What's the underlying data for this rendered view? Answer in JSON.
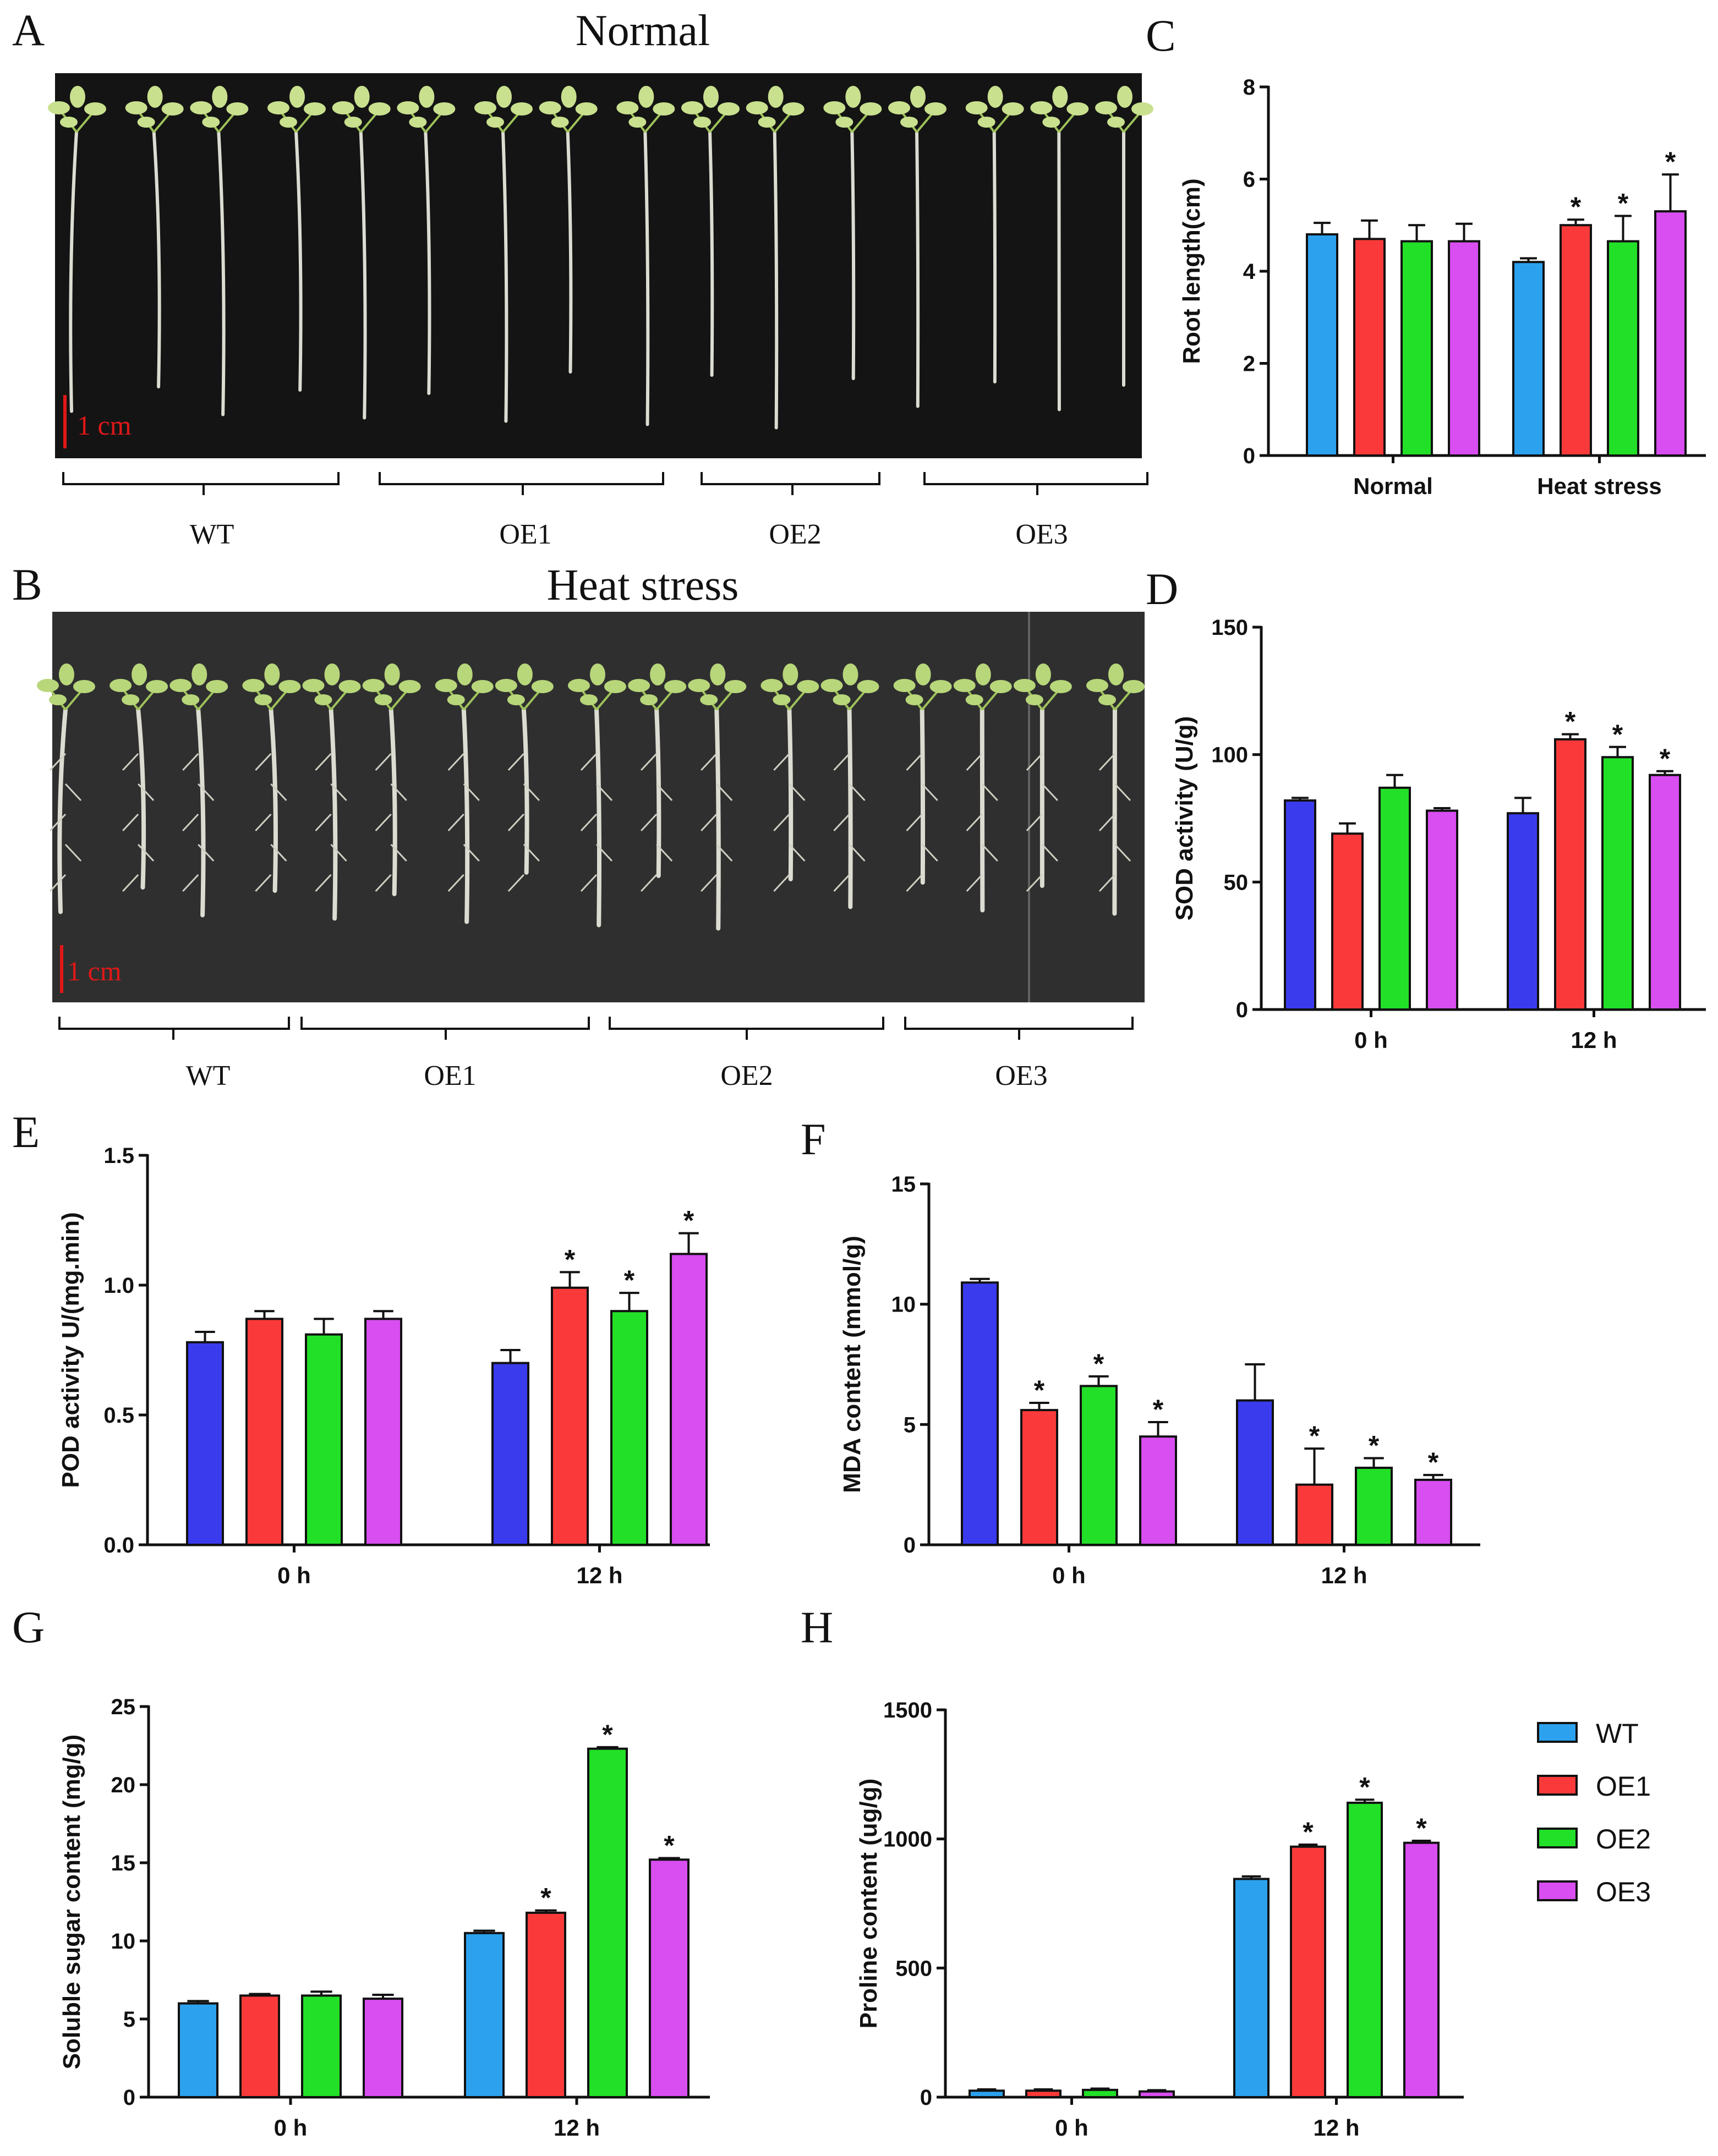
{
  "photos": [
    {
      "letter": "A",
      "title": "Normal",
      "scale_label": "1 cm",
      "groups": [
        "WT",
        "OE1",
        "OE2",
        "OE3"
      ],
      "seedling_count": 16
    },
    {
      "letter": "B",
      "title": "Heat stress",
      "scale_label": "1 cm",
      "groups": [
        "WT",
        "OE1",
        "OE2",
        "OE3"
      ],
      "seedling_count": 17
    }
  ],
  "legend": {
    "items": [
      {
        "label": "WT",
        "color": "#2ca2ee"
      },
      {
        "label": "OE1",
        "color": "#fa3a3a"
      },
      {
        "label": "OE2",
        "color": "#22e028"
      },
      {
        "label": "OE3",
        "color": "#d84ef0"
      }
    ]
  },
  "chart_data": [
    {
      "panel": "C",
      "type": "bar",
      "ylabel": "Root length(cm)",
      "ylim": [
        0,
        8
      ],
      "yticks": [
        "0",
        "2",
        "4",
        "6",
        "8"
      ],
      "categories": [
        "Normal",
        "Heat stress"
      ],
      "series": [
        {
          "name": "WT",
          "color": "#2ca2ee",
          "values": [
            4.8,
            4.2
          ],
          "errors": [
            0.25,
            0.08
          ],
          "sig": [
            "",
            ""
          ]
        },
        {
          "name": "OE1",
          "color": "#fa3a3a",
          "values": [
            4.7,
            5.0
          ],
          "errors": [
            0.4,
            0.12
          ],
          "sig": [
            "",
            "*"
          ]
        },
        {
          "name": "OE2",
          "color": "#22e028",
          "values": [
            4.65,
            4.65
          ],
          "errors": [
            0.35,
            0.55
          ],
          "sig": [
            "",
            "*"
          ]
        },
        {
          "name": "OE3",
          "color": "#d84ef0",
          "values": [
            4.65,
            5.3
          ],
          "errors": [
            0.38,
            0.8
          ],
          "sig": [
            "",
            "*"
          ]
        }
      ]
    },
    {
      "panel": "D",
      "type": "bar",
      "ylabel": "SOD activity (U/g)",
      "ylim": [
        0,
        150
      ],
      "yticks": [
        "0",
        "50",
        "100",
        "150"
      ],
      "categories": [
        "0 h",
        "12 h"
      ],
      "series": [
        {
          "name": "WT",
          "color": "#3b3bee",
          "values": [
            82,
            77
          ],
          "errors": [
            1,
            6
          ],
          "sig": [
            "",
            ""
          ]
        },
        {
          "name": "OE1",
          "color": "#fa3a3a",
          "values": [
            69,
            106
          ],
          "errors": [
            4,
            2
          ],
          "sig": [
            "",
            "*"
          ]
        },
        {
          "name": "OE2",
          "color": "#22e028",
          "values": [
            87,
            99
          ],
          "errors": [
            5,
            4
          ],
          "sig": [
            "",
            "*"
          ]
        },
        {
          "name": "OE3",
          "color": "#d84ef0",
          "values": [
            78,
            92
          ],
          "errors": [
            1,
            1.5
          ],
          "sig": [
            "",
            "*"
          ]
        }
      ]
    },
    {
      "panel": "E",
      "type": "bar",
      "ylabel": "POD activity U/(mg.min)",
      "ylim": [
        0,
        1.5
      ],
      "yticks": [
        "0.0",
        "0.5",
        "1.0",
        "1.5"
      ],
      "categories": [
        "0 h",
        "12 h"
      ],
      "series": [
        {
          "name": "WT",
          "color": "#3b3bee",
          "values": [
            0.78,
            0.7
          ],
          "errors": [
            0.04,
            0.05
          ],
          "sig": [
            "",
            ""
          ]
        },
        {
          "name": "OE1",
          "color": "#fa3a3a",
          "values": [
            0.87,
            0.99
          ],
          "errors": [
            0.03,
            0.06
          ],
          "sig": [
            "",
            "*"
          ]
        },
        {
          "name": "OE2",
          "color": "#22e028",
          "values": [
            0.81,
            0.9
          ],
          "errors": [
            0.06,
            0.07
          ],
          "sig": [
            "",
            "*"
          ]
        },
        {
          "name": "OE3",
          "color": "#d84ef0",
          "values": [
            0.87,
            1.12
          ],
          "errors": [
            0.03,
            0.08
          ],
          "sig": [
            "",
            "*"
          ]
        }
      ]
    },
    {
      "panel": "F",
      "type": "bar",
      "ylabel": "MDA content (mmol/g)",
      "ylim": [
        0,
        15
      ],
      "yticks": [
        "0",
        "5",
        "10",
        "15"
      ],
      "categories": [
        "0 h",
        "12 h"
      ],
      "series": [
        {
          "name": "WT",
          "color": "#3b3bee",
          "values": [
            10.9,
            6.0
          ],
          "errors": [
            0.15,
            1.5
          ],
          "sig": [
            "",
            ""
          ]
        },
        {
          "name": "OE1",
          "color": "#fa3a3a",
          "values": [
            5.6,
            2.5
          ],
          "errors": [
            0.3,
            1.5
          ],
          "sig": [
            "*",
            "*"
          ]
        },
        {
          "name": "OE2",
          "color": "#22e028",
          "values": [
            6.6,
            3.2
          ],
          "errors": [
            0.4,
            0.4
          ],
          "sig": [
            "*",
            "*"
          ]
        },
        {
          "name": "OE3",
          "color": "#d84ef0",
          "values": [
            4.5,
            2.7
          ],
          "errors": [
            0.6,
            0.2
          ],
          "sig": [
            "*",
            "*"
          ]
        }
      ]
    },
    {
      "panel": "G",
      "type": "bar",
      "ylabel": "Soluble sugar content (mg/g)",
      "ylim": [
        0,
        25
      ],
      "yticks": [
        "0",
        "5",
        "10",
        "15",
        "20",
        "25"
      ],
      "categories": [
        "0 h",
        "12 h"
      ],
      "series": [
        {
          "name": "WT",
          "color": "#2ca2ee",
          "values": [
            6.0,
            10.5
          ],
          "errors": [
            0.15,
            0.15
          ],
          "sig": [
            "",
            ""
          ]
        },
        {
          "name": "OE1",
          "color": "#fa3a3a",
          "values": [
            6.5,
            11.8
          ],
          "errors": [
            0.1,
            0.15
          ],
          "sig": [
            "",
            "*"
          ]
        },
        {
          "name": "OE2",
          "color": "#22e028",
          "values": [
            6.5,
            22.3
          ],
          "errors": [
            0.25,
            0.1
          ],
          "sig": [
            "",
            "*"
          ]
        },
        {
          "name": "OE3",
          "color": "#d84ef0",
          "values": [
            6.3,
            15.2
          ],
          "errors": [
            0.25,
            0.1
          ],
          "sig": [
            "",
            "*"
          ]
        }
      ]
    },
    {
      "panel": "H",
      "type": "bar",
      "ylabel": "Proline content (ug/g)",
      "ylim": [
        0,
        1500
      ],
      "yticks": [
        "0",
        "500",
        "1000",
        "1500"
      ],
      "categories": [
        "0 h",
        "12 h"
      ],
      "series": [
        {
          "name": "WT",
          "color": "#2ca2ee",
          "values": [
            25,
            845
          ],
          "errors": [
            5,
            10
          ],
          "sig": [
            "",
            ""
          ]
        },
        {
          "name": "OE1",
          "color": "#fa3a3a",
          "values": [
            25,
            970
          ],
          "errors": [
            5,
            8
          ],
          "sig": [
            "",
            "*"
          ]
        },
        {
          "name": "OE2",
          "color": "#22e028",
          "values": [
            28,
            1140
          ],
          "errors": [
            5,
            12
          ],
          "sig": [
            "",
            "*"
          ]
        },
        {
          "name": "OE3",
          "color": "#d84ef0",
          "values": [
            22,
            985
          ],
          "errors": [
            5,
            8
          ],
          "sig": [
            "",
            "*"
          ]
        }
      ]
    }
  ]
}
